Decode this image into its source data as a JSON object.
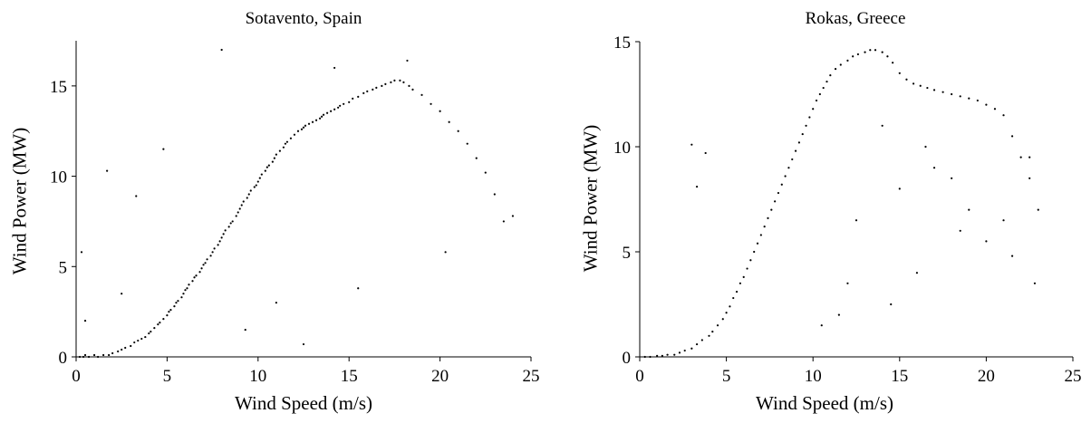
{
  "chart_data": [
    {
      "type": "scatter",
      "title": "Sotavento, Spain",
      "xlabel": "Wind Speed (m/s)",
      "ylabel": "Wind Power (MW)",
      "xlim": [
        0,
        25
      ],
      "ylim": [
        0,
        17.5
      ],
      "xticks": [
        0,
        5,
        10,
        15,
        20,
        25
      ],
      "yticks": [
        0,
        5,
        10,
        15
      ],
      "grid": false,
      "marker_color": "#000000",
      "series": [
        {
          "x": [
            0.2,
            0.4,
            0.5,
            0.7,
            1.0,
            1.2,
            1.5,
            1.8,
            2.0,
            2.3,
            2.5,
            2.7,
            3.0,
            3.2,
            3.4,
            3.6,
            3.8,
            4.0,
            4.1,
            4.3,
            4.5,
            4.6,
            4.8,
            5.0,
            5.1,
            5.2,
            5.4,
            5.5,
            5.6,
            5.8,
            5.9,
            6.0,
            6.1,
            6.2,
            6.4,
            6.5,
            6.6,
            6.8,
            6.9,
            7.0,
            7.1,
            7.2,
            7.4,
            7.5,
            7.6,
            7.8,
            7.9,
            8.0,
            8.1,
            8.2,
            8.4,
            8.5,
            8.6,
            8.8,
            8.9,
            9.0,
            9.1,
            9.2,
            9.4,
            9.5,
            9.6,
            9.8,
            9.9,
            10.0,
            10.1,
            10.2,
            10.4,
            10.5,
            10.6,
            10.8,
            10.9,
            11.0,
            11.2,
            11.4,
            11.5,
            11.6,
            11.8,
            12.0,
            12.2,
            12.4,
            12.5,
            12.6,
            12.8,
            13.0,
            13.2,
            13.4,
            13.5,
            13.6,
            13.8,
            14.0,
            14.2,
            14.4,
            14.5,
            14.7,
            15.0,
            15.2,
            15.5,
            15.8,
            16.0,
            16.3,
            16.5,
            16.8,
            17.0,
            17.3,
            17.5,
            17.8,
            18.0,
            18.3,
            18.5,
            19.0,
            19.5,
            20.0,
            20.5,
            21.0,
            21.5,
            22.0,
            22.5,
            23.0,
            24.0,
            0.3,
            0.5,
            1.7,
            2.5,
            4.8,
            12.5,
            15.5,
            18.2,
            20.3,
            23.5,
            14.2,
            8.0,
            9.3,
            11.0,
            3.3
          ],
          "y": [
            0.0,
            0.0,
            0.1,
            0.0,
            0.1,
            0.0,
            0.1,
            0.1,
            0.2,
            0.3,
            0.4,
            0.5,
            0.6,
            0.8,
            0.9,
            1.0,
            1.1,
            1.3,
            1.4,
            1.6,
            1.8,
            1.9,
            2.1,
            2.3,
            2.5,
            2.6,
            2.8,
            3.0,
            3.1,
            3.3,
            3.5,
            3.7,
            3.8,
            4.0,
            4.2,
            4.4,
            4.5,
            4.7,
            4.9,
            5.1,
            5.2,
            5.4,
            5.6,
            5.8,
            6.0,
            6.2,
            6.4,
            6.6,
            6.8,
            7.0,
            7.2,
            7.4,
            7.5,
            7.8,
            8.0,
            8.2,
            8.4,
            8.6,
            8.8,
            9.0,
            9.2,
            9.4,
            9.5,
            9.7,
            9.9,
            10.1,
            10.3,
            10.5,
            10.6,
            10.8,
            11.0,
            11.2,
            11.4,
            11.6,
            11.8,
            11.9,
            12.1,
            12.3,
            12.5,
            12.6,
            12.7,
            12.8,
            12.9,
            13.0,
            13.1,
            13.2,
            13.3,
            13.4,
            13.5,
            13.6,
            13.7,
            13.8,
            13.9,
            14.0,
            14.1,
            14.3,
            14.4,
            14.6,
            14.7,
            14.8,
            14.9,
            15.0,
            15.1,
            15.2,
            15.3,
            15.3,
            15.2,
            15.0,
            14.8,
            14.5,
            14.0,
            13.6,
            13.0,
            12.5,
            11.8,
            11.0,
            10.2,
            9.0,
            7.8,
            5.8,
            2.0,
            10.3,
            3.5,
            11.5,
            0.7,
            3.8,
            16.4,
            5.8,
            7.5,
            16.0,
            17.0,
            1.5,
            3.0,
            8.9
          ],
          "size": [
            1,
            1,
            1,
            1,
            1,
            1,
            1,
            1,
            1,
            1,
            1,
            1,
            1,
            1,
            1,
            1,
            1,
            1,
            1,
            1,
            1,
            1,
            1,
            1,
            1,
            1,
            1,
            1,
            1,
            1,
            1,
            1,
            1,
            1,
            1,
            1,
            1,
            1,
            1,
            1,
            1,
            1,
            1,
            1,
            1,
            1,
            1,
            1,
            1,
            1,
            1,
            1,
            1,
            1,
            1,
            1,
            1,
            1,
            1,
            1,
            1,
            1,
            1,
            1,
            1,
            1,
            1,
            1,
            1,
            1,
            1,
            1,
            1,
            1,
            1,
            1,
            1,
            1,
            1,
            1,
            1,
            1,
            1,
            1,
            1,
            1,
            1,
            1,
            1,
            1,
            1,
            1,
            1,
            1,
            1,
            1,
            1,
            1,
            1,
            1,
            1,
            1,
            1,
            1,
            1,
            1,
            1,
            1,
            1,
            1,
            1,
            1,
            1,
            1,
            1,
            1,
            1,
            1,
            1,
            1,
            1,
            1,
            1,
            1,
            1,
            1,
            1,
            1,
            1,
            1,
            1,
            1,
            1,
            1
          ]
        }
      ]
    },
    {
      "type": "scatter",
      "title": "Rokas, Greece",
      "xlabel": "Wind Speed (m/s)",
      "ylabel": "Wind Power (MW)",
      "xlim": [
        0,
        25
      ],
      "ylim": [
        0,
        15
      ],
      "xticks": [
        0,
        5,
        10,
        15,
        20,
        25
      ],
      "yticks": [
        0,
        5,
        10,
        15
      ],
      "grid": false,
      "marker_color": "#000000",
      "series": [
        {
          "x": [
            0.3,
            0.6,
            1.0,
            1.3,
            1.6,
            2.0,
            2.3,
            2.6,
            3.0,
            3.3,
            3.6,
            4.0,
            4.2,
            4.5,
            4.8,
            5.0,
            5.2,
            5.4,
            5.6,
            5.8,
            6.0,
            6.2,
            6.4,
            6.6,
            6.8,
            7.0,
            7.2,
            7.4,
            7.6,
            7.8,
            8.0,
            8.2,
            8.4,
            8.6,
            8.8,
            9.0,
            9.2,
            9.4,
            9.6,
            9.8,
            10.0,
            10.2,
            10.4,
            10.6,
            10.8,
            11.0,
            11.3,
            11.6,
            12.0,
            12.3,
            12.6,
            13.0,
            13.3,
            13.6,
            14.0,
            14.3,
            14.6,
            15.0,
            15.4,
            15.8,
            16.2,
            16.6,
            17.0,
            17.5,
            18.0,
            18.5,
            19.0,
            19.5,
            20.0,
            20.5,
            21.0,
            21.5,
            22.0,
            22.5,
            23.0,
            3.0,
            3.3,
            3.8,
            12.0,
            14.5,
            16.0,
            18.5,
            20.0,
            21.5,
            22.8,
            15.0,
            17.0,
            19.0,
            21.0,
            22.5,
            12.5,
            14.0,
            16.5,
            18.0,
            10.5,
            11.5
          ],
          "y": [
            0.0,
            0.0,
            0.05,
            0.05,
            0.1,
            0.1,
            0.2,
            0.3,
            0.4,
            0.6,
            0.8,
            1.0,
            1.2,
            1.5,
            1.8,
            2.1,
            2.4,
            2.8,
            3.1,
            3.5,
            3.8,
            4.2,
            4.6,
            5.0,
            5.4,
            5.8,
            6.2,
            6.6,
            7.0,
            7.4,
            7.8,
            8.2,
            8.6,
            9.0,
            9.4,
            9.8,
            10.2,
            10.6,
            11.0,
            11.4,
            11.8,
            12.2,
            12.5,
            12.8,
            13.1,
            13.4,
            13.7,
            13.9,
            14.1,
            14.3,
            14.4,
            14.5,
            14.6,
            14.6,
            14.5,
            14.3,
            14.0,
            13.5,
            13.2,
            13.0,
            12.9,
            12.8,
            12.7,
            12.6,
            12.5,
            12.4,
            12.3,
            12.2,
            12.0,
            11.8,
            11.5,
            10.5,
            9.5,
            8.5,
            7.0,
            10.1,
            8.1,
            9.7,
            3.5,
            2.5,
            4.0,
            6.0,
            5.5,
            4.8,
            3.5,
            8.0,
            9.0,
            7.0,
            6.5,
            9.5,
            6.5,
            11.0,
            10.0,
            8.5,
            1.5,
            2.0
          ],
          "size": [
            1,
            1,
            1,
            1,
            1,
            1,
            1,
            1,
            1,
            1,
            1,
            1,
            1,
            1,
            1,
            1,
            1,
            1,
            1,
            1,
            1,
            1,
            1,
            1,
            1,
            1,
            1,
            1,
            1,
            1,
            1,
            1,
            1,
            1,
            1,
            1,
            1,
            1,
            1,
            1,
            1,
            1,
            1,
            1,
            1,
            1,
            1,
            1,
            1,
            1,
            1,
            1,
            1,
            1,
            1,
            1,
            1,
            1,
            1,
            1,
            1,
            1,
            1,
            1,
            1,
            1,
            1,
            1,
            1,
            1,
            1,
            1,
            1,
            1,
            1,
            1,
            1,
            1,
            1,
            1,
            1,
            1,
            1,
            1,
            1,
            1,
            1,
            1,
            1,
            1,
            1,
            1,
            1,
            1,
            1,
            1
          ]
        }
      ]
    }
  ]
}
